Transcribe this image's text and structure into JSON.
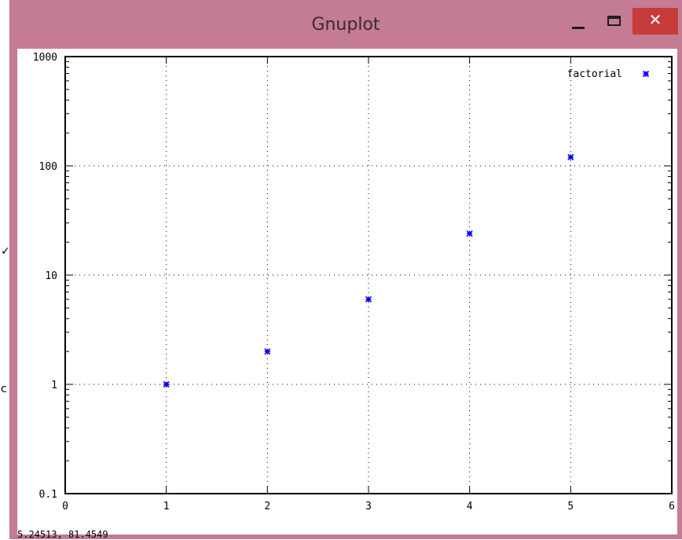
{
  "window": {
    "title": "Gnuplot",
    "minimize_label": "—",
    "close_label": "✕",
    "accent_color": "#c47b94",
    "close_color": "#c83b3b"
  },
  "desktop": {
    "glyph_check": "✓",
    "glyph_c": "c"
  },
  "status": {
    "coordinates": "5.24513,  81.4549"
  },
  "chart_data": {
    "type": "scatter",
    "yscale": "log",
    "grid": true,
    "legend_position": "top-right",
    "xlim": [
      0,
      6
    ],
    "ylim": [
      0.1,
      1000
    ],
    "xticks": [
      0,
      1,
      2,
      3,
      4,
      5,
      6
    ],
    "xtick_labels": [
      "0",
      "1",
      "2",
      "3",
      "4",
      "5",
      "6"
    ],
    "yticks": [
      0.1,
      1,
      10,
      100,
      1000
    ],
    "ytick_labels": [
      "0.1",
      "1",
      "10",
      "100",
      "1000"
    ],
    "series": [
      {
        "name": "factorial",
        "color": "#0000ff",
        "marker": "*",
        "x": [
          1,
          2,
          3,
          4,
          5
        ],
        "y": [
          1,
          2,
          6,
          24,
          120
        ]
      }
    ]
  }
}
